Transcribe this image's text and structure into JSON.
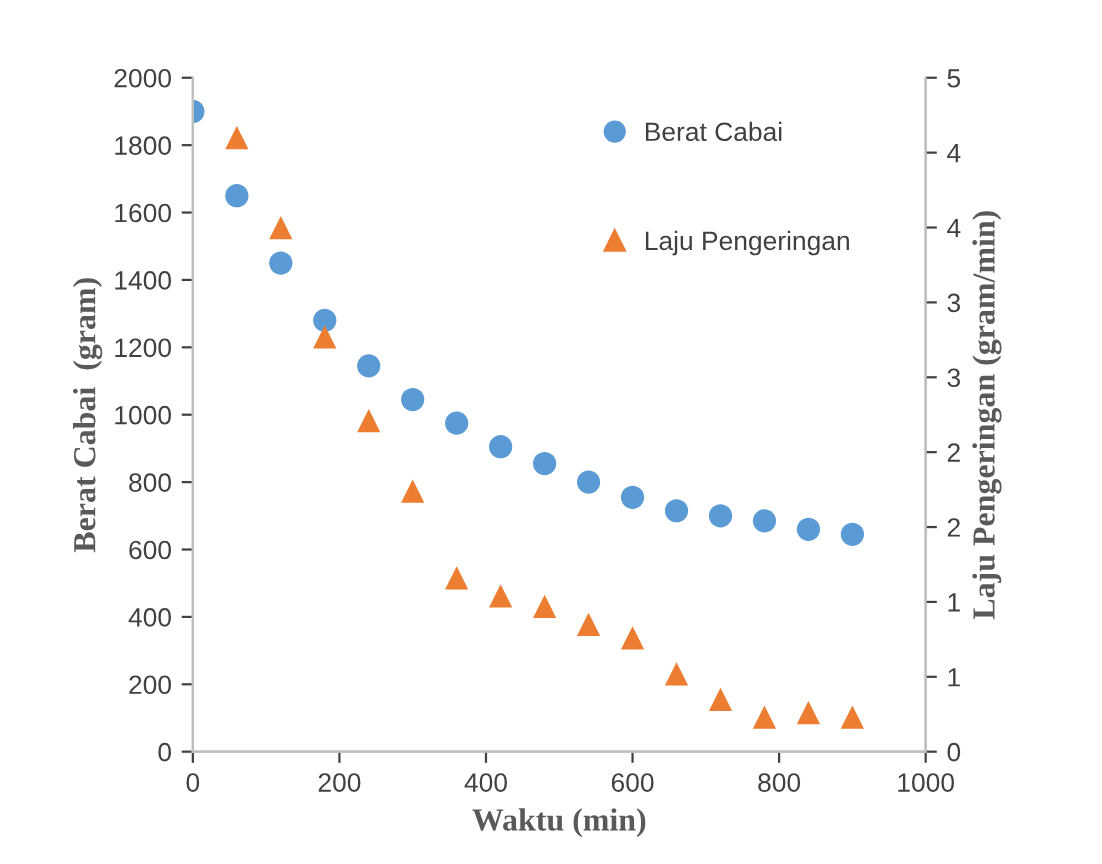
{
  "chart_data": {
    "type": "scatter",
    "xlabel": "Waktu (min)",
    "ylabel": "Berat Cabai  (gram)",
    "y2label": "Laju Pengeringan (gram/min)",
    "xlim": [
      0,
      1000
    ],
    "xticks": [
      0,
      200,
      400,
      600,
      800,
      1000
    ],
    "ylim": [
      0,
      2000
    ],
    "yticks": [
      0,
      200,
      400,
      600,
      800,
      1000,
      1200,
      1400,
      1600,
      1800,
      2000
    ],
    "y2lim": [
      0,
      4.5
    ],
    "y2ticks": [
      0,
      {
        "value": 0.5,
        "label": "1"
      },
      1,
      {
        "value": 1.5,
        "label": "2"
      },
      2,
      {
        "value": 2.5,
        "label": "3"
      },
      3,
      {
        "value": 3.5,
        "label": "4"
      },
      4,
      {
        "value": 4.5,
        "label": "5"
      }
    ],
    "grid": false,
    "legend": "top right",
    "series": [
      {
        "name": "Berat Cabai",
        "color": "#5b9bd5",
        "marker": "circle",
        "x": [
          0,
          60,
          120,
          180,
          240,
          300,
          360,
          420,
          480,
          540,
          600,
          660,
          720,
          780,
          840,
          900
        ],
        "values": [
          1900,
          1650,
          1450,
          1280,
          1145,
          1045,
          975,
          905,
          855,
          800,
          755,
          715,
          700,
          685,
          660,
          645
        ]
      },
      {
        "name": "Laju Pengeringan",
        "color": "#ed7d31",
        "marker": "triangle",
        "axis": "y2",
        "x": [
          60,
          120,
          180,
          240,
          300,
          360,
          420,
          480,
          540,
          600,
          660,
          720,
          780,
          840,
          900
        ],
        "values": [
          4.1,
          3.5,
          2.77,
          2.21,
          1.74,
          1.16,
          1.04,
          0.97,
          0.85,
          0.76,
          0.52,
          0.35,
          0.23,
          0.26,
          0.23
        ]
      }
    ]
  }
}
